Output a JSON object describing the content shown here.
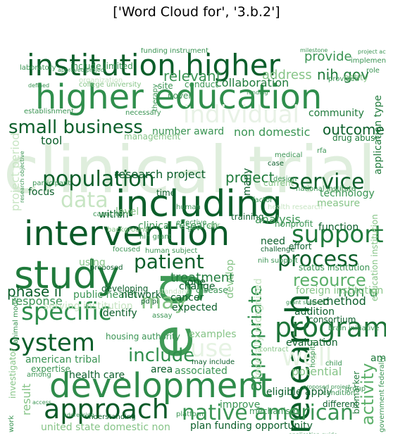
{
  "title": "['Word Cloud for', '3.b.2']",
  "words": [
    {
      "text": "clinical trial",
      "shade": "#dfeedd"
    },
    {
      "text": "higher education",
      "shade": "#2f8e4c"
    },
    {
      "text": "institution higher",
      "shade": "#0b5e2a"
    },
    {
      "text": "including",
      "shade": "#0b5e2a"
    },
    {
      "text": "intervention",
      "shade": "#0a5a28"
    },
    {
      "text": "study",
      "shade": "#1f7a3b"
    },
    {
      "text": "development",
      "shade": "#2e8b4a"
    },
    {
      "text": "research",
      "shade": "#0b5e2a"
    },
    {
      "text": "e g",
      "shade": "#3f9a56"
    },
    {
      "text": "program",
      "shade": "#1d7438"
    },
    {
      "text": "approach",
      "shade": "#0a5a28"
    },
    {
      "text": "native american",
      "shade": "#3a9453"
    },
    {
      "text": "support",
      "shade": "#1f7a3b"
    },
    {
      "text": "process",
      "shade": "#0b5e2a"
    },
    {
      "text": "service",
      "shade": "#0b5e2a"
    },
    {
      "text": "population",
      "shade": "#0b5e2a"
    },
    {
      "text": "small business",
      "shade": "#0b5e2a"
    },
    {
      "text": "individual",
      "shade": "#e8f2e6"
    },
    {
      "text": "specific",
      "shade": "#2f8e4c"
    },
    {
      "text": "system",
      "shade": "#0b5e2a"
    },
    {
      "text": "include",
      "shade": "#2f8e4c"
    },
    {
      "text": "may",
      "shade": "#86c487"
    },
    {
      "text": "patient",
      "shade": "#0b5e2a"
    },
    {
      "text": "appropriate",
      "shade": "#2f8e4c"
    },
    {
      "text": "activity",
      "shade": "#5aaf68"
    },
    {
      "text": "resource",
      "shade": "#5aaf68"
    },
    {
      "text": "data",
      "shade": "#c7e5c3"
    },
    {
      "text": "well",
      "shade": "#e6f3e3"
    },
    {
      "text": "use",
      "shade": "#e6f3e3"
    },
    {
      "text": "project",
      "shade": "#1f7a3b"
    },
    {
      "text": "outcome",
      "shade": "#0b5e2a"
    },
    {
      "text": "nih gov",
      "shade": "#1f7a3b"
    },
    {
      "text": "provide",
      "shade": "#3a9453"
    },
    {
      "text": "relevant",
      "shade": "#3a9453"
    },
    {
      "text": "address",
      "shade": "#86c487"
    },
    {
      "text": "collaboration",
      "shade": "#1f7a3b"
    },
    {
      "text": "community",
      "shade": "#1f7a3b"
    },
    {
      "text": "number award",
      "shade": "#3a9453"
    },
    {
      "text": "non domestic",
      "shade": "#3a9453"
    },
    {
      "text": "technology",
      "shade": "#3a9453"
    },
    {
      "text": "measure",
      "shade": "#86c487"
    },
    {
      "text": "function",
      "shade": "#0b5e2a"
    },
    {
      "text": "phase ii",
      "shade": "#0b5e2a"
    },
    {
      "text": "response",
      "shade": "#3a9453"
    },
    {
      "text": "treatment",
      "shade": "#1f7a3b"
    },
    {
      "text": "clinical research",
      "shade": "#3a9453"
    },
    {
      "text": "public health",
      "shade": "#3a9453"
    },
    {
      "text": "expected",
      "shade": "#0b5e2a"
    },
    {
      "text": "method",
      "shade": "#0b5e2a"
    },
    {
      "text": "non u",
      "shade": "#3a9453"
    },
    {
      "text": "american tribal",
      "shade": "#3a9453"
    },
    {
      "text": "health care",
      "shade": "#0b5e2a"
    },
    {
      "text": "associated",
      "shade": "#3a9453"
    },
    {
      "text": "eligible apply",
      "shade": "#0b5e2a"
    },
    {
      "text": "plan funding opportunity",
      "shade": "#0b5e2a"
    },
    {
      "text": "united state domestic non",
      "shade": "#86c487"
    },
    {
      "text": "potential",
      "shade": "#86c487"
    },
    {
      "text": "evaluation",
      "shade": "#0b5e2a"
    },
    {
      "text": "focus",
      "shade": "#0b5e2a"
    },
    {
      "text": "tool",
      "shade": "#0b5e2a"
    },
    {
      "text": "within",
      "shade": "#0b5e2a"
    },
    {
      "text": "identify",
      "shade": "#0b5e2a"
    },
    {
      "text": "network",
      "shade": "#0b5e2a"
    },
    {
      "text": "change",
      "shade": "#0b5e2a"
    },
    {
      "text": "improve",
      "shade": "#3a9453"
    },
    {
      "text": "addition",
      "shade": "#0b5e2a"
    },
    {
      "text": "used",
      "shade": "#0b5e2a"
    },
    {
      "text": "project period",
      "shade": "#c7e5c3"
    },
    {
      "text": "application type",
      "shade": "#1f7a3b"
    },
    {
      "text": "education institution",
      "shade": "#86c487"
    },
    {
      "text": "investigator",
      "shade": "#86c487"
    },
    {
      "text": "amp",
      "shade": "#1f7a3b"
    },
    {
      "text": "cancer",
      "shade": "#0b5e2a"
    },
    {
      "text": "training",
      "shade": "#0b5e2a"
    },
    {
      "text": "analysis",
      "shade": "#3a9453"
    },
    {
      "text": "develop",
      "shade": "#86c487"
    },
    {
      "text": "serving institution",
      "shade": "#c7e5c3"
    },
    {
      "text": "foreign institution",
      "shade": "#86c487"
    },
    {
      "text": "drug abuse",
      "shade": "#1f7a3b"
    },
    {
      "text": "one",
      "shade": "#0b5e2a"
    },
    {
      "text": "examples",
      "shade": "#86c487"
    },
    {
      "text": "expertise",
      "shade": "#3a9453"
    },
    {
      "text": "need",
      "shade": "#0b5e2a"
    },
    {
      "text": "many",
      "shade": "#0b5e2a"
    },
    {
      "text": "area",
      "shade": "#0b5e2a"
    },
    {
      "text": "level",
      "shade": "#86c487"
    },
    {
      "text": "research project",
      "shade": "#0b5e2a"
    },
    {
      "text": "funding instrument",
      "shade": "#3a9453"
    },
    {
      "text": "disease",
      "shade": "#3a9453"
    },
    {
      "text": "mechanism",
      "shade": "#3a9453"
    },
    {
      "text": "different",
      "shade": "#0b5e2a"
    },
    {
      "text": "human subject",
      "shade": "#3a9453"
    },
    {
      "text": "status institution",
      "shade": "#3a9453"
    },
    {
      "text": "nih support",
      "shade": "#3a9453"
    },
    {
      "text": "challenge",
      "shade": "#0b5e2a"
    },
    {
      "text": "effort",
      "shade": "#0b5e2a"
    },
    {
      "text": "brain initiative",
      "shade": "#3a9453"
    },
    {
      "text": "biomarker",
      "shade": "#1f7a3b"
    },
    {
      "text": "rfa",
      "shade": "#3a9453"
    },
    {
      "text": "national institute",
      "shade": "#3a9453"
    },
    {
      "text": "understanding",
      "shade": "#0b5e2a"
    },
    {
      "text": "may include",
      "shade": "#0b5e2a"
    },
    {
      "text": "result",
      "shade": "#86c487"
    },
    {
      "text": "include limited",
      "shade": "#3a9453"
    },
    {
      "text": "laboratory",
      "shade": "#3a9453"
    },
    {
      "text": "developing",
      "shade": "#0b5e2a"
    },
    {
      "text": "animal model",
      "shade": "#3a9453"
    },
    {
      "text": "proposed",
      "shade": "#0b5e2a"
    },
    {
      "text": "using",
      "shade": "#86c487"
    },
    {
      "text": "grant support",
      "shade": "#3a9453"
    },
    {
      "text": "consortium",
      "shade": "#0b5e2a"
    },
    {
      "text": "housing authority",
      "shade": "#3a9453"
    },
    {
      "text": "nih grant",
      "shade": "#3a9453"
    },
    {
      "text": "contract",
      "shade": "#86c487"
    },
    {
      "text": "pd pi",
      "shade": "#0b5e2a"
    },
    {
      "text": "case",
      "shade": "#0b5e2a"
    },
    {
      "text": "time",
      "shade": "#0b5e2a"
    },
    {
      "text": "participant",
      "shade": "#3a9453"
    },
    {
      "text": "design",
      "shade": "#3a9453"
    },
    {
      "text": "implementation",
      "shade": "#3a9453"
    },
    {
      "text": "entity",
      "shade": "#86c487"
    },
    {
      "text": "conduct",
      "shade": "#3a9453"
    },
    {
      "text": "site",
      "shade": "#3a9453"
    },
    {
      "text": "assay",
      "shade": "#3a9453"
    },
    {
      "text": "factor",
      "shade": "#3a9453"
    },
    {
      "text": "current",
      "shade": "#86c487"
    },
    {
      "text": "work",
      "shade": "#3a9453"
    },
    {
      "text": "role",
      "shade": "#3a9453"
    },
    {
      "text": "among",
      "shade": "#3a9453"
    },
    {
      "text": "target",
      "shade": "#86c487"
    },
    {
      "text": "condition",
      "shade": "#3a9453"
    },
    {
      "text": "capacity",
      "shade": "#3a9453"
    },
    {
      "text": "standard",
      "shade": "#c7e5c3"
    },
    {
      "text": "medical",
      "shade": "#3a9453"
    },
    {
      "text": "necessary",
      "shade": "#3a9453"
    },
    {
      "text": "platform",
      "shade": "#3a9453"
    },
    {
      "text": "application guide",
      "shade": "#3a9453"
    },
    {
      "text": "organization",
      "shade": "#c7e5c3"
    },
    {
      "text": "defined",
      "shade": "#3a9453"
    },
    {
      "text": "project activity",
      "shade": "#3a9453"
    },
    {
      "text": "government federally",
      "shade": "#3a9453"
    },
    {
      "text": "federally recognized",
      "shade": "#c7e5c3"
    },
    {
      "text": "sbir",
      "shade": "#86c487"
    },
    {
      "text": "gov",
      "shade": "#3a9453"
    },
    {
      "text": "effective",
      "shade": "#3a9453"
    },
    {
      "text": "human",
      "shade": "#3a9453"
    },
    {
      "text": "novel",
      "shade": "#3a9453"
    },
    {
      "text": "approved project",
      "shade": "#3a9453"
    },
    {
      "text": "research objective",
      "shade": "#3a9453"
    },
    {
      "text": "nonprofit",
      "shade": "#3a9453"
    },
    {
      "text": "therapy",
      "shade": "#3a9453"
    },
    {
      "text": "health research",
      "shade": "#c7e5c3"
    },
    {
      "text": "college university",
      "shade": "#86c487"
    },
    {
      "text": "hospital",
      "shade": "#3a9453"
    },
    {
      "text": "proposed project",
      "shade": "#3a9453"
    },
    {
      "text": "focused",
      "shade": "#3a9453"
    },
    {
      "text": "milestone",
      "shade": "#3a9453"
    },
    {
      "text": "provided",
      "shade": "#3a9453"
    },
    {
      "text": "funding",
      "shade": "#3a9453"
    },
    {
      "text": "establishment",
      "shade": "#3a9453"
    },
    {
      "text": "management",
      "shade": "#86c487"
    },
    {
      "text": "background",
      "shade": "#86c487"
    },
    {
      "text": "child",
      "shade": "#3a9453"
    },
    {
      "text": "addressing",
      "shade": "#3a9453"
    },
    {
      "text": "group",
      "shade": "#3a9453"
    },
    {
      "text": "access",
      "shade": "#3a9453"
    }
  ]
}
